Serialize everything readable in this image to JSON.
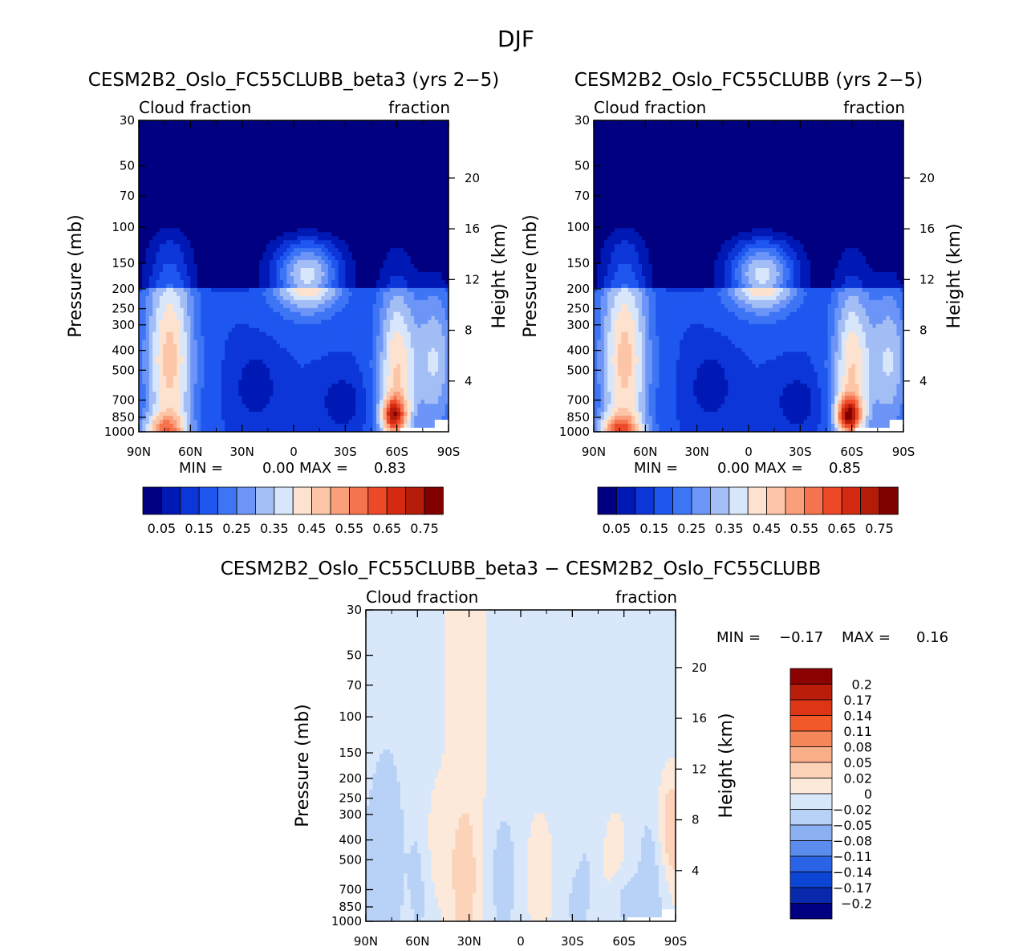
{
  "figure": {
    "title": "DJF"
  },
  "colors": {
    "abs_palette": [
      "#000080",
      "#0018b4",
      "#0c36d8",
      "#1f56f0",
      "#3d75f5",
      "#6c95f7",
      "#a3bdf5",
      "#d7e6fb",
      "#fde2cf",
      "#fcc5a8",
      "#fb9e7a",
      "#f5744f",
      "#ee4a2a",
      "#d42a12",
      "#b41c0a",
      "#800000"
    ],
    "diff_palette": [
      "#8b0000",
      "#ba1d0a",
      "#dd3515",
      "#f25a2a",
      "#f6875a",
      "#f9ad88",
      "#fcd2b8",
      "#fde9d9",
      "#d8e7fa",
      "#b8d1f6",
      "#8cb1f2",
      "#5b8cee",
      "#2b63e6",
      "#0c44d4",
      "#0829ab",
      "#000080"
    ],
    "missing": "#ffffff"
  },
  "chart_data": [
    {
      "type": "contour",
      "id": "panel-beta3",
      "title": "CESM2B2_Oslo_FC55CLUBB_beta3 (yrs 2−5)",
      "left_string": "Cloud fraction",
      "right_string": "fraction",
      "xlabel": "",
      "ylabel": "Pressure (mb)",
      "ylabel_right": "Height (km)",
      "x_ticks": [
        {
          "value": -90,
          "label": "90N"
        },
        {
          "value": -60,
          "label": "60N"
        },
        {
          "value": -30,
          "label": "30N"
        },
        {
          "value": 0,
          "label": "0"
        },
        {
          "value": 30,
          "label": "30S"
        },
        {
          "value": 60,
          "label": "60S"
        },
        {
          "value": 90,
          "label": "90S"
        }
      ],
      "y_ticks": [
        30,
        50,
        70,
        100,
        150,
        200,
        250,
        300,
        400,
        500,
        700,
        850,
        1000
      ],
      "height_ticks": [
        20,
        16,
        12,
        8,
        4
      ],
      "xlim": [
        -90,
        90
      ],
      "ylim": [
        1000,
        30
      ],
      "stats": {
        "min_label": "MIN =",
        "min": "0.00",
        "max_label": "MAX =",
        "max": "0.83"
      },
      "field": "abs",
      "peaks": {
        "nh_lat": -75,
        "nh_val": 0.69,
        "sh_lat": 58,
        "sh_val": 0.76
      }
    },
    {
      "type": "contour",
      "id": "panel-clubb",
      "title": "CESM2B2_Oslo_FC55CLUBB (yrs 2−5)",
      "left_string": "Cloud fraction",
      "right_string": "fraction",
      "xlabel": "",
      "ylabel": "Pressure (mb)",
      "ylabel_right": "Height (km)",
      "x_ticks": [
        {
          "value": -90,
          "label": "90N"
        },
        {
          "value": -60,
          "label": "60N"
        },
        {
          "value": -30,
          "label": "30N"
        },
        {
          "value": 0,
          "label": "0"
        },
        {
          "value": 30,
          "label": "30S"
        },
        {
          "value": 60,
          "label": "60S"
        },
        {
          "value": 90,
          "label": "90S"
        }
      ],
      "y_ticks": [
        30,
        50,
        70,
        100,
        150,
        200,
        250,
        300,
        400,
        500,
        700,
        850,
        1000
      ],
      "height_ticks": [
        20,
        16,
        12,
        8,
        4
      ],
      "xlim": [
        -90,
        90
      ],
      "ylim": [
        1000,
        30
      ],
      "stats": {
        "min_label": "MIN =",
        "min": "0.00",
        "max_label": "MAX =",
        "max": "0.85"
      },
      "field": "abs",
      "peaks": {
        "nh_lat": -75,
        "nh_val": 0.73,
        "sh_lat": 58,
        "sh_val": 0.8
      }
    },
    {
      "type": "contour",
      "id": "panel-diff",
      "title": "CESM2B2_Oslo_FC55CLUBB_beta3 − CESM2B2_Oslo_FC55CLUBB",
      "left_string": "Cloud fraction",
      "right_string": "fraction",
      "xlabel": "",
      "ylabel": "Pressure (mb)",
      "ylabel_right": "Height (km)",
      "x_ticks": [
        {
          "value": -90,
          "label": "90N"
        },
        {
          "value": -60,
          "label": "60N"
        },
        {
          "value": -30,
          "label": "30N"
        },
        {
          "value": 0,
          "label": "0"
        },
        {
          "value": 30,
          "label": "30S"
        },
        {
          "value": 60,
          "label": "60S"
        },
        {
          "value": 90,
          "label": "90S"
        }
      ],
      "y_ticks": [
        30,
        50,
        70,
        100,
        150,
        200,
        250,
        300,
        400,
        500,
        700,
        850,
        1000
      ],
      "height_ticks": [
        20,
        16,
        12,
        8,
        4
      ],
      "xlim": [
        -90,
        90
      ],
      "ylim": [
        1000,
        30
      ],
      "stats": {
        "min_label": "MIN =",
        "min": "−0.17",
        "max_label": "MAX =",
        "max": "0.16"
      },
      "field": "diff"
    }
  ],
  "colorbars": {
    "abs": {
      "levels": [
        0.05,
        0.1,
        0.15,
        0.2,
        0.25,
        0.3,
        0.35,
        0.4,
        0.45,
        0.5,
        0.55,
        0.6,
        0.65,
        0.7,
        0.75
      ],
      "labels": [
        "0.05",
        "0.15",
        "0.25",
        "0.35",
        "0.45",
        "0.55",
        "0.65",
        "0.75"
      ]
    },
    "diff": {
      "levels": [
        0.2,
        0.17,
        0.14,
        0.11,
        0.08,
        0.05,
        0.02,
        0,
        -0.02,
        -0.05,
        -0.08,
        -0.11,
        -0.14,
        -0.17,
        -0.2
      ],
      "labels": [
        "0.2",
        "0.17",
        "0.14",
        "0.11",
        "0.08",
        "0.05",
        "0.02",
        "0",
        "−0.02",
        "−0.05",
        "−0.08",
        "−0.11",
        "−0.14",
        "−0.17",
        "−0.2"
      ]
    }
  }
}
